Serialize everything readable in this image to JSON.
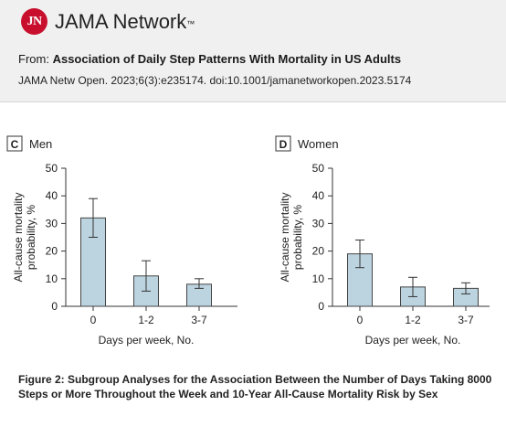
{
  "header": {
    "logo_text": "JN",
    "brand": "JAMA Network",
    "trademark": "™",
    "from_label": "From:",
    "article_title": "Association of Daily Step Patterns With Mortality in US Adults",
    "citation": "JAMA Netw Open. 2023;6(3):e235174. doi:10.1001/jamanetworkopen.2023.5174"
  },
  "caption": "Figure 2: Subgroup Analyses for the Association Between the Number of Days Taking 8000 Steps or More Throughout the Week and 10-Year All-Cause Mortality Risk by Sex",
  "colors": {
    "bar_fill": "#bcd4df",
    "bar_stroke": "#444444",
    "logo_red": "#c8102e"
  },
  "chart_data": [
    {
      "type": "bar",
      "panel_letter": "C",
      "title": "Men",
      "categories": [
        "0",
        "1-2",
        "3-7"
      ],
      "values": [
        32,
        11,
        8
      ],
      "error_low": [
        25,
        5.5,
        6.5
      ],
      "error_high": [
        39,
        16.5,
        10
      ],
      "xlabel": "Days per week, No.",
      "ylabel": "All-cause mortality probability, %",
      "ylim": [
        0,
        50
      ],
      "yticks": [
        0,
        10,
        20,
        30,
        40,
        50
      ],
      "grid": false
    },
    {
      "type": "bar",
      "panel_letter": "D",
      "title": "Women",
      "categories": [
        "0",
        "1-2",
        "3-7"
      ],
      "values": [
        19,
        7,
        6.5
      ],
      "error_low": [
        14,
        3.5,
        4.5
      ],
      "error_high": [
        24,
        10.5,
        8.5
      ],
      "xlabel": "Days per week, No.",
      "ylabel": "All-cause mortality probability, %",
      "ylim": [
        0,
        50
      ],
      "yticks": [
        0,
        10,
        20,
        30,
        40,
        50
      ],
      "grid": false
    }
  ]
}
